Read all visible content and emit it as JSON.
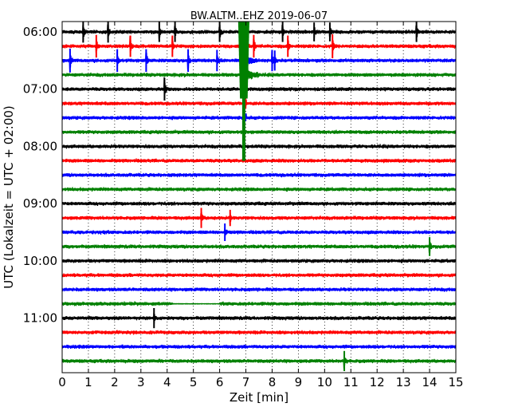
{
  "chart_data": {
    "type": "line",
    "title": "BW.ALTM..EHZ 2019-06-07",
    "xlabel": "Zeit  [min]",
    "ylabel": "UTC (Lokalzeit = UTC + 02:00)",
    "xlim": [
      0,
      15
    ],
    "x_ticks": [
      "0",
      "1",
      "2",
      "3",
      "4",
      "5",
      "6",
      "7",
      "8",
      "9",
      "10",
      "11",
      "12",
      "13",
      "14",
      "15"
    ],
    "y_ticks": [
      "06:00",
      "07:00",
      "08:00",
      "09:00",
      "10:00",
      "11:00"
    ],
    "grid": "vertical dotted",
    "trace_colors": [
      "#000000",
      "#ff0000",
      "#0000ff",
      "#008000"
    ],
    "traces_start": "06:00",
    "trace_interval_min": 15,
    "trace_count": 24,
    "events": [
      {
        "trace": 0,
        "t": 0.8,
        "amp": 0.8
      },
      {
        "trace": 0,
        "t": 1.75,
        "amp": 0.8
      },
      {
        "trace": 0,
        "t": 3.7,
        "amp": 0.7
      },
      {
        "trace": 0,
        "t": 4.3,
        "amp": 0.7
      },
      {
        "trace": 0,
        "t": 6.0,
        "amp": 0.7
      },
      {
        "trace": 0,
        "t": 6.9,
        "amp": 0.8
      },
      {
        "trace": 0,
        "t": 8.4,
        "amp": 0.7
      },
      {
        "trace": 0,
        "t": 9.6,
        "amp": 0.6
      },
      {
        "trace": 0,
        "t": 10.2,
        "amp": 0.6
      },
      {
        "trace": 0,
        "t": 13.5,
        "amp": 0.7
      },
      {
        "trace": 1,
        "t": 1.3,
        "amp": 0.9
      },
      {
        "trace": 1,
        "t": 2.6,
        "amp": 0.8
      },
      {
        "trace": 1,
        "t": 4.2,
        "amp": 0.8
      },
      {
        "trace": 1,
        "t": 7.3,
        "amp": 0.9
      },
      {
        "trace": 1,
        "t": 8.6,
        "amp": 0.8
      },
      {
        "trace": 1,
        "t": 10.3,
        "amp": 1.0
      },
      {
        "trace": 2,
        "t": 0.3,
        "amp": 1.0
      },
      {
        "trace": 2,
        "t": 2.1,
        "amp": 0.9
      },
      {
        "trace": 2,
        "t": 3.2,
        "amp": 0.9
      },
      {
        "trace": 2,
        "t": 4.8,
        "amp": 0.9
      },
      {
        "trace": 2,
        "t": 5.9,
        "amp": 0.8
      },
      {
        "trace": 2,
        "t": 8.0,
        "amp": 0.8
      },
      {
        "trace": 2,
        "t": 8.1,
        "amp": 0.7
      },
      {
        "trace": 4,
        "t": 3.9,
        "amp": 0.9
      },
      {
        "trace": 13,
        "t": 5.3,
        "amp": 0.7
      },
      {
        "trace": 13,
        "t": 6.4,
        "amp": 0.4
      },
      {
        "trace": 14,
        "t": 6.2,
        "amp": 0.5
      },
      {
        "trace": 15,
        "t": 14.0,
        "amp": 0.6
      },
      {
        "trace": 20,
        "t": 3.5,
        "amp": 0.7
      },
      {
        "trace": 23,
        "t": 10.75,
        "amp": 0.7
      }
    ],
    "earthquake": {
      "t": 6.92,
      "onset_trace": 3,
      "peak_trace": 1
    }
  }
}
